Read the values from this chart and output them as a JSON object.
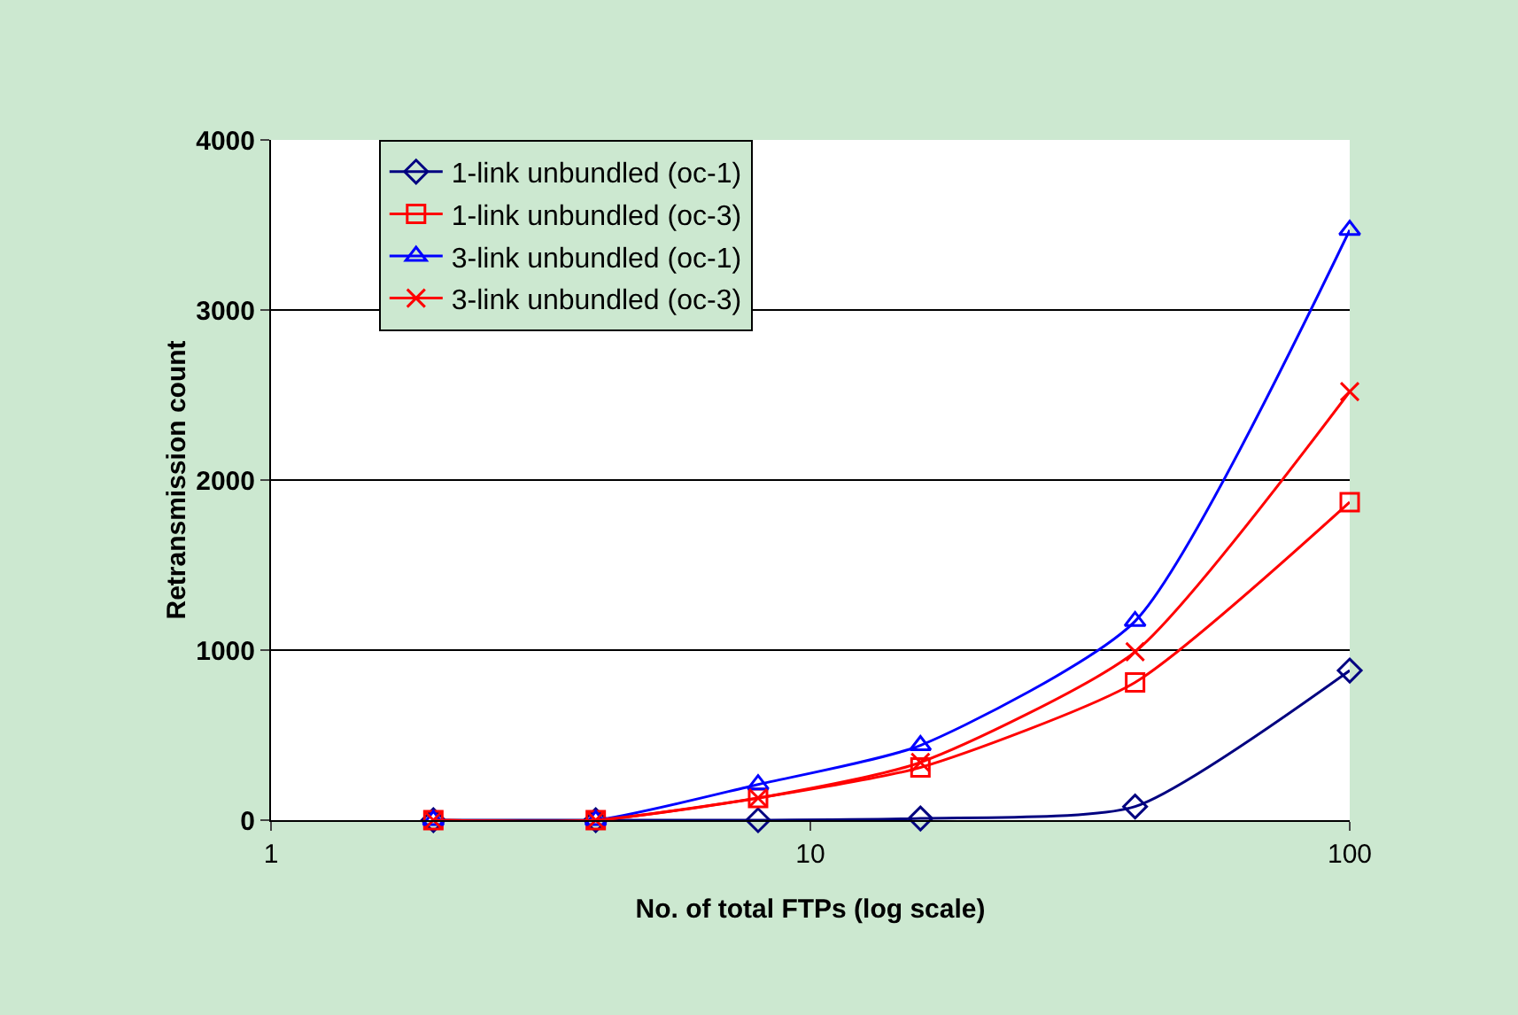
{
  "chart_data": {
    "type": "line",
    "xlabel": "No. of total FTPs (log scale)",
    "ylabel": "Retransmission count",
    "x": [
      2,
      4,
      8,
      16,
      40,
      100
    ],
    "series": [
      {
        "name": "1-link unbundled (oc-1)",
        "color": "#000080",
        "marker": "diamond",
        "values": [
          0,
          0,
          0,
          10,
          80,
          880
        ]
      },
      {
        "name": "1-link unbundled (oc-3)",
        "color": "#ff0000",
        "marker": "square",
        "values": [
          0,
          0,
          130,
          310,
          810,
          1870
        ]
      },
      {
        "name": "3-link unbundled (oc-1)",
        "color": "#0000ff",
        "marker": "triangle",
        "values": [
          0,
          0,
          210,
          440,
          1170,
          3470
        ]
      },
      {
        "name": "3-link unbundled (oc-3)",
        "color": "#ff0000",
        "marker": "cross",
        "values": [
          0,
          0,
          130,
          340,
          990,
          2520
        ]
      }
    ],
    "log": "x",
    "xlim": [
      1,
      100
    ],
    "xticks": [
      1,
      10,
      100
    ],
    "ylim": [
      0,
      4000
    ],
    "yticks": [
      0,
      1000,
      2000,
      3000,
      4000
    ],
    "grid": "y",
    "legend": "top left",
    "line_style": "solid"
  }
}
